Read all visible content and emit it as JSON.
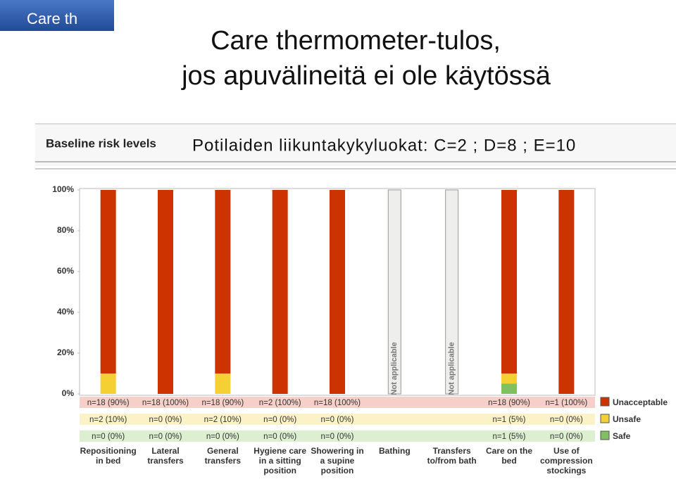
{
  "tab_label": "Care th",
  "title_lines": [
    "Care thermometer-tulos,",
    "jos apuvälineitä ei ole käytössä"
  ],
  "chart_data": {
    "type": "stacked_bar",
    "title": "Baseline risk levels",
    "subtitle": "Potilaiden liikuntakykyluokat: C=2 ; D=8 ; E=10",
    "categories": [
      "Repositioning in bed",
      "Lateral transfers",
      "General transfers",
      "Hygiene care in a sitting position",
      "Showering in a supine position",
      "Bathing",
      "Transfers to/from bath",
      "Care on the bed",
      "Use of compression stockings"
    ],
    "na_label": "Not applicable",
    "series": [
      {
        "name": "Unacceptable",
        "color": "#cc3300",
        "values": [
          90,
          100,
          90,
          100,
          100,
          null,
          null,
          90,
          100
        ],
        "value_labels": [
          "n=18 (90%)",
          "n=18 (100%)",
          "n=18 (90%)",
          "n=2 (100%)",
          "n=18 (100%)",
          null,
          null,
          "n=18 (90%)",
          "n=1 (100%)"
        ]
      },
      {
        "name": "Unsafe",
        "color": "#f5d033",
        "values": [
          10,
          0,
          10,
          0,
          0,
          null,
          null,
          5,
          0
        ],
        "value_labels": [
          "n=2 (10%)",
          "n=0 (0%)",
          "n=2 (10%)",
          "n=0 (0%)",
          "n=0 (0%)",
          null,
          null,
          "n=1 (5%)",
          "n=0 (0%)"
        ]
      },
      {
        "name": "Safe",
        "color": "#80c060",
        "values": [
          0,
          0,
          0,
          0,
          0,
          null,
          null,
          5,
          0
        ],
        "value_labels": [
          "n=0 (0%)",
          "n=0 (0%)",
          "n=0 (0%)",
          "n=0 (0%)",
          "n=0 (0%)",
          null,
          null,
          "n=1 (5%)",
          "n=0 (0%)"
        ]
      }
    ],
    "ylim": [
      0,
      100
    ],
    "yticks": [
      {
        "value": 0,
        "label": "0%"
      },
      {
        "value": 20,
        "label": "20%"
      },
      {
        "value": 40,
        "label": "40%"
      },
      {
        "value": 60,
        "label": "60%"
      },
      {
        "value": 80,
        "label": "80%"
      },
      {
        "value": 100,
        "label": "100%"
      }
    ]
  }
}
